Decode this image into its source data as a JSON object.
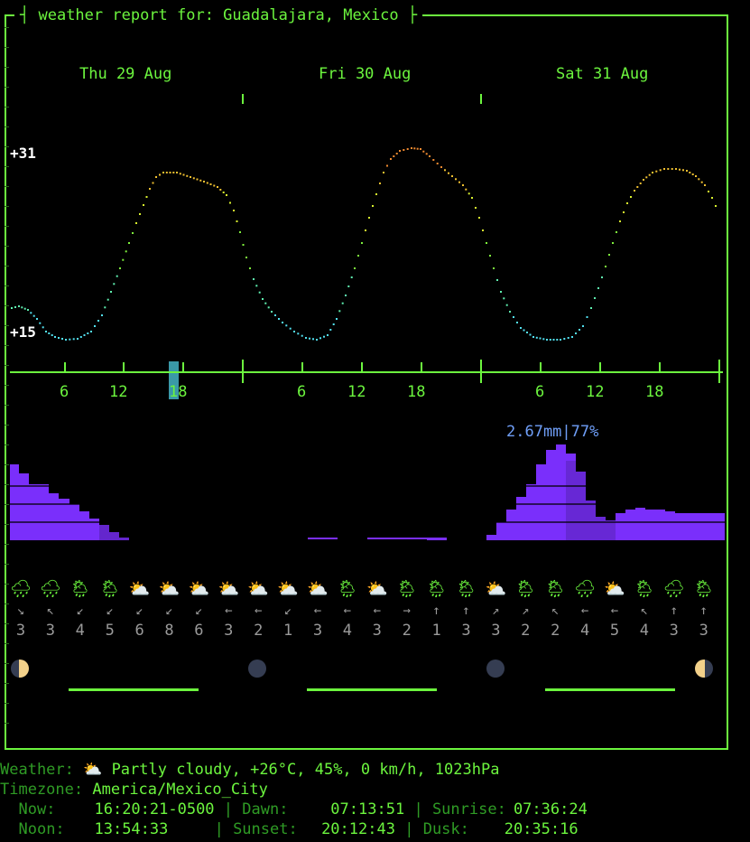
{
  "header": {
    "title": "weather report for: Guadalajara, Mexico"
  },
  "days": [
    "Thu 29 Aug",
    "Fri 30 Aug",
    "Sat 31 Aug"
  ],
  "temperature": {
    "max_label": "+31",
    "min_label": "+15"
  },
  "hour_ticks": [
    "6",
    "12",
    "18",
    "6",
    "12",
    "18",
    "6",
    "12",
    "18"
  ],
  "precipitation": {
    "peak_label": "2.67mm|77%"
  },
  "hourly": {
    "icons": [
      "rain",
      "rain",
      "partly-rain",
      "partly-rain",
      "partly-cloudy",
      "partly-cloudy",
      "partly-cloudy",
      "partly-cloudy",
      "partly-cloudy",
      "partly-cloudy",
      "partly-cloudy",
      "partly-rain",
      "partly-cloudy",
      "partly-rain",
      "partly-rain",
      "partly-rain",
      "partly-cloudy",
      "partly-rain",
      "partly-rain",
      "rain",
      "partly-cloudy",
      "partly-rain",
      "rain",
      "partly-rain"
    ],
    "wind_dirs": [
      "↘",
      "↖",
      "↙",
      "↙",
      "↙",
      "↙",
      "↙",
      "←",
      "←",
      "↙",
      "←",
      "←",
      "←",
      "→",
      "↑",
      "↑",
      "↗",
      "↗",
      "↖",
      "←",
      "←",
      "↖",
      "↑",
      "↑"
    ],
    "wind_speeds": [
      "3",
      "3",
      "4",
      "5",
      "6",
      "8",
      "6",
      "3",
      "2",
      "1",
      "3",
      "4",
      "3",
      "2",
      "1",
      "3",
      "3",
      "2",
      "2",
      "4",
      "5",
      "4",
      "3",
      "3"
    ]
  },
  "colors": {
    "frame": "#6cf53e",
    "rain": "#7a2ffb",
    "rain_label": "#6f9ef7",
    "now_marker": "#3a99a8"
  },
  "footer": {
    "weather_label": "Weather:",
    "weather_icon": "partly-cloudy",
    "weather_value": "Partly cloudy, +26°C, 45%, 0 km/h, 1023hPa",
    "timezone_label": "Timezone:",
    "timezone_value": "America/Mexico_City",
    "now_label": "Now:",
    "now_value": "16:20:21-0500",
    "dawn_label": "Dawn:",
    "dawn_value": "07:13:51",
    "sunrise_label": "Sunrise:",
    "sunrise_value": "07:36:24",
    "noon_label": "Noon:",
    "noon_value": "13:54:33",
    "sunset_label": "Sunset:",
    "sunset_value": "20:12:43",
    "dusk_label": "Dusk:",
    "dusk_value": "20:35:16"
  }
}
